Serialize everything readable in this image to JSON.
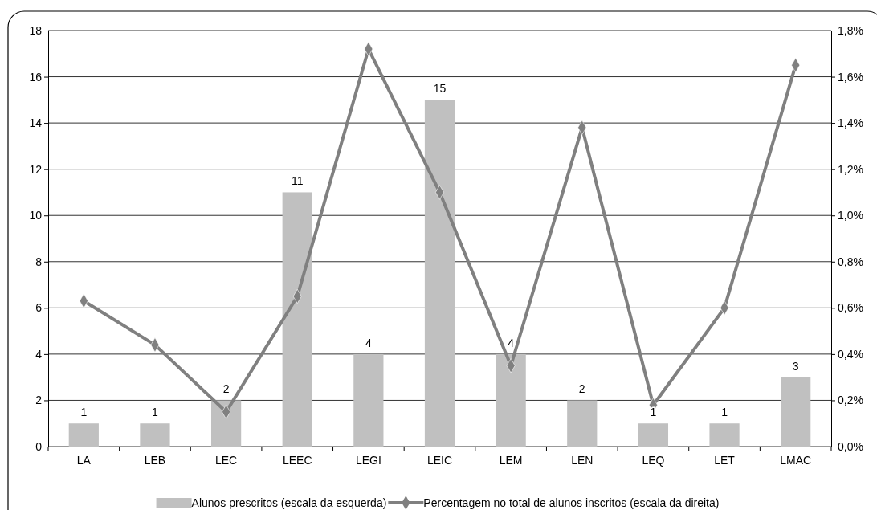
{
  "chart_data": {
    "type": "bar",
    "categories": [
      "LA",
      "LEB",
      "LEC",
      "LEEC",
      "LEGI",
      "LEIC",
      "LEM",
      "LEN",
      "LEQ",
      "LET",
      "LMAC"
    ],
    "series": [
      {
        "name": "Alunos prescritos (escala da esquerda)",
        "color": "#c0c0c0",
        "values": [
          1,
          1,
          2,
          11,
          4,
          15,
          4,
          2,
          1,
          1,
          3
        ],
        "value_labels": [
          "1",
          "1",
          "2",
          "11",
          "4",
          "15",
          "4",
          "2",
          "1",
          "1",
          "3"
        ]
      },
      {
        "name": "Percentagem no total de alunos inscritos (escala da direita)",
        "type": "line",
        "axis": "y2",
        "color": "#808080",
        "marker": "diamond",
        "values": [
          0.63,
          0.44,
          0.15,
          0.65,
          1.72,
          1.1,
          0.35,
          1.38,
          0.18,
          0.6,
          1.65
        ]
      }
    ],
    "ylim": [
      0,
      18
    ],
    "yticks": [
      0,
      2,
      4,
      6,
      8,
      10,
      12,
      14,
      16,
      18
    ],
    "y2lim": [
      0,
      1.8
    ],
    "y2ticks": [
      {
        "value": 0,
        "label": "0,0%"
      },
      {
        "value": 0.2,
        "label": "0,2%"
      },
      {
        "value": 0.4,
        "label": "0,4%"
      },
      {
        "value": 0.6,
        "label": "0,6%"
      },
      {
        "value": 0.8,
        "label": "0,8%"
      },
      {
        "value": 1.0,
        "label": "1,0%"
      },
      {
        "value": 1.2,
        "label": "1,2%"
      },
      {
        "value": 1.4,
        "label": "1,4%"
      },
      {
        "value": 1.6,
        "label": "1,6%"
      },
      {
        "value": 1.8,
        "label": "1,8%"
      }
    ],
    "grid": "y",
    "legend": "bottom"
  }
}
